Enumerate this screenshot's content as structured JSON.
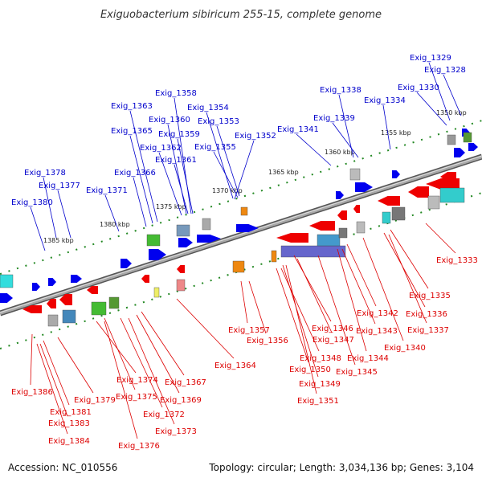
{
  "title": "Exiguobacterium sibiricum 255-15, complete genome",
  "footer": {
    "accession": "Accession: NC_010556",
    "topology": "Topology: circular; Length: 3,034,136 bp; Genes: 3,104"
  },
  "colors": {
    "forward_label": "#0000cc",
    "reverse_label": "#dd0000",
    "forward_gene": "#0000ee",
    "reverse_gene": "#ee0000",
    "tick": "#228822",
    "backbone": "#888888"
  },
  "scale_labels": [
    "1350 kbp",
    "1355 kbp",
    "1360 kbp",
    "1365 kbp",
    "1370 kbp",
    "1375 kbp",
    "1380 kbp",
    "1385 kbp"
  ],
  "forward_labels": [
    "Exig_1329",
    "Exig_1328",
    "Exig_1330",
    "Exig_1338",
    "Exig_1334",
    "Exig_1339",
    "Exig_1341",
    "Exig_1358",
    "Exig_1363",
    "Exig_1354",
    "Exig_1360",
    "Exig_1353",
    "Exig_1365",
    "Exig_1359",
    "Exig_1352",
    "Exig_1362",
    "Exig_1355",
    "Exig_1361",
    "Exig_1366",
    "Exig_1378",
    "Exig_1377",
    "Exig_1371",
    "Exig_1380"
  ],
  "reverse_labels": [
    "Exig_1333",
    "Exig_1335",
    "Exig_1336",
    "Exig_1342",
    "Exig_1337",
    "Exig_1343",
    "Exig_1346",
    "Exig_1340",
    "Exig_1357",
    "Exig_1347",
    "Exig_1356",
    "Exig_1348",
    "Exig_1344",
    "Exig_1364",
    "Exig_1350",
    "Exig_1345",
    "Exig_1374",
    "Exig_1367",
    "Exig_1349",
    "Exig_1386",
    "Exig_1375",
    "Exig_1379",
    "Exig_1369",
    "Exig_1351",
    "Exig_1381",
    "Exig_1372",
    "Exig_1383",
    "Exig_1373",
    "Exig_1384",
    "Exig_1376"
  ]
}
